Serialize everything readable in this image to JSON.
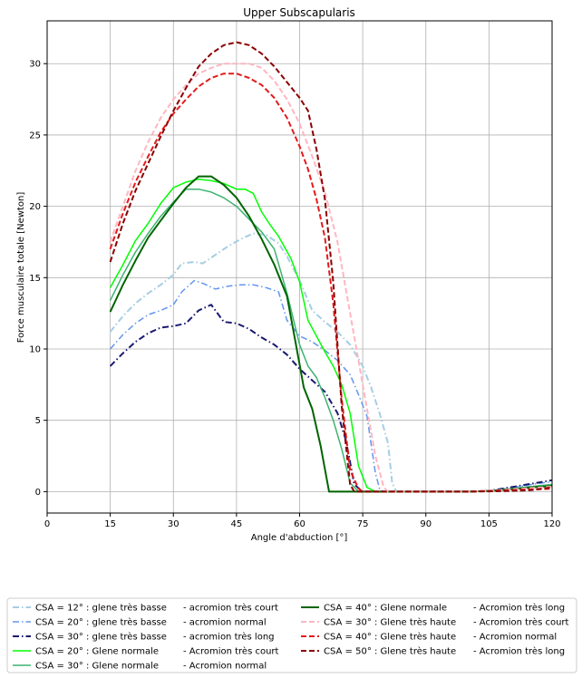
{
  "chart_data": {
    "type": "line",
    "title": "Upper Subscapularis",
    "xlabel": "Angle d'abduction [°]",
    "ylabel": "Force musculaire totale [Newton]",
    "xlim": [
      0,
      120
    ],
    "ylim": [
      -1.5,
      33
    ],
    "xticks": [
      0,
      15,
      30,
      45,
      60,
      75,
      90,
      105,
      120
    ],
    "yticks": [
      0,
      5,
      10,
      15,
      20,
      25,
      30
    ],
    "grid": true,
    "legend_position": "bottom",
    "series": [
      {
        "name": "CSA = 12° : glene très basse",
        "color": "#a6cee3",
        "dash": "dashdot",
        "width": 2,
        "x": [
          15,
          18,
          21,
          24,
          27,
          30,
          32,
          35,
          37,
          40,
          43,
          46,
          49,
          52,
          55,
          57,
          60,
          63,
          66,
          69,
          72,
          75,
          77,
          79,
          81,
          82,
          83,
          90,
          100,
          105,
          110,
          115,
          120
        ],
        "y": [
          11.2,
          12.3,
          13.2,
          13.9,
          14.5,
          15.2,
          16.0,
          16.1,
          16.0,
          16.6,
          17.2,
          17.7,
          18.1,
          18.0,
          17.4,
          16.5,
          14.8,
          12.7,
          11.9,
          11.2,
          10.3,
          8.8,
          7.3,
          5.5,
          3.4,
          0.6,
          0,
          0,
          0,
          0.05,
          0.2,
          0.35,
          0.5
        ]
      },
      {
        "name": "CSA = 20° : glene très basse",
        "color": "#6495ed",
        "dash": "dashdot",
        "width": 1.5,
        "x": [
          15,
          18,
          21,
          24,
          27,
          30,
          32,
          35,
          37,
          40,
          43,
          46,
          49,
          52,
          55,
          57,
          60,
          63,
          66,
          69,
          72,
          74,
          76,
          78,
          79,
          80,
          90,
          100,
          105,
          110,
          115,
          120
        ],
        "y": [
          10.0,
          11.0,
          11.8,
          12.4,
          12.7,
          13.1,
          14.0,
          14.8,
          14.6,
          14.2,
          14.4,
          14.5,
          14.5,
          14.3,
          14.0,
          12.0,
          10.9,
          10.5,
          9.9,
          9.2,
          8.2,
          6.8,
          5.3,
          1.3,
          0.2,
          0,
          0,
          0,
          0.05,
          0.25,
          0.5,
          0.7
        ]
      },
      {
        "name": "CSA = 30° : glene très basse",
        "color": "#191970",
        "dash": "dashdot",
        "width": 2,
        "x": [
          15,
          18,
          21,
          24,
          27,
          30,
          33,
          36,
          39,
          42,
          45,
          48,
          51,
          54,
          57,
          60,
          63,
          66,
          69,
          71,
          73,
          75,
          90,
          100,
          105,
          110,
          115,
          120
        ],
        "y": [
          8.8,
          9.7,
          10.5,
          11.1,
          11.5,
          11.6,
          11.8,
          12.7,
          13.1,
          11.9,
          11.8,
          11.4,
          10.8,
          10.3,
          9.6,
          8.6,
          7.8,
          7.0,
          5.5,
          3.6,
          0.5,
          0,
          0,
          0,
          0.05,
          0.3,
          0.55,
          0.8
        ]
      },
      {
        "name": "CSA = 20° : Glene normale",
        "color": "#00ff00",
        "dash": "solid",
        "width": 1.5,
        "x": [
          15,
          18,
          21,
          24,
          27,
          30,
          33,
          36,
          39,
          42,
          45,
          47,
          49,
          51,
          53,
          55,
          58,
          60,
          62,
          64,
          66,
          68,
          70,
          72,
          74,
          76,
          78,
          90,
          100,
          105,
          110,
          115,
          120
        ],
        "y": [
          14.3,
          15.9,
          17.6,
          18.8,
          20.2,
          21.3,
          21.7,
          21.9,
          21.8,
          21.6,
          21.2,
          21.2,
          20.9,
          19.6,
          18.7,
          17.9,
          16.3,
          14.7,
          12.0,
          10.9,
          9.8,
          8.8,
          7.5,
          5.5,
          1.8,
          0.3,
          0,
          0,
          0,
          0.05,
          0.15,
          0.3,
          0.45
        ]
      },
      {
        "name": "CSA = 30° : Glene normale",
        "color": "#3cb371",
        "dash": "solid",
        "width": 1.5,
        "x": [
          15,
          18,
          21,
          24,
          27,
          30,
          33,
          36,
          39,
          42,
          45,
          48,
          51,
          54,
          57,
          60,
          62,
          64,
          66,
          68,
          70,
          72,
          74,
          76,
          90,
          100,
          105,
          110,
          115,
          120
        ],
        "y": [
          13.4,
          15.2,
          16.8,
          18.1,
          19.3,
          20.3,
          21.2,
          21.2,
          21.0,
          20.6,
          20.0,
          19.1,
          18.2,
          17.0,
          13.9,
          10.3,
          8.8,
          8.0,
          6.6,
          5.0,
          3.0,
          0.6,
          0,
          0,
          0,
          0,
          0.05,
          0.2,
          0.35,
          0.5
        ]
      },
      {
        "name": "CSA = 40° : Glene normale",
        "color": "#006400",
        "dash": "solid",
        "width": 2,
        "x": [
          15,
          18,
          21,
          24,
          27,
          30,
          33,
          36,
          39,
          42,
          45,
          48,
          51,
          54,
          57,
          59,
          61,
          63,
          65,
          67,
          69,
          75,
          90,
          100,
          105,
          110,
          115,
          120
        ],
        "y": [
          12.6,
          14.5,
          16.2,
          17.8,
          19.0,
          20.2,
          21.3,
          22.1,
          22.1,
          21.5,
          20.6,
          19.3,
          17.7,
          15.9,
          13.7,
          10.5,
          7.3,
          5.8,
          3.2,
          0,
          0,
          0,
          0,
          0,
          0.05,
          0.15,
          0.3,
          0.4
        ]
      },
      {
        "name": "CSA = 30° : Glene très haute",
        "color": "#ffb6c1",
        "dash": "dashed",
        "width": 2,
        "x": [
          15,
          18,
          21,
          24,
          27,
          30,
          33,
          36,
          39,
          42,
          45,
          48,
          51,
          54,
          57,
          60,
          63,
          66,
          69,
          72,
          75,
          78,
          80,
          81,
          90,
          100,
          105,
          110,
          115,
          120
        ],
        "y": [
          17.5,
          20.0,
          22.5,
          24.5,
          26.2,
          27.5,
          28.5,
          29.3,
          29.7,
          30.0,
          30.0,
          30.0,
          29.7,
          28.8,
          27.5,
          25.8,
          23.5,
          21.0,
          17.5,
          12.5,
          7.5,
          2.5,
          0.3,
          0,
          0,
          0,
          0.05,
          0.15,
          0.25,
          0.35
        ]
      },
      {
        "name": "CSA = 40° : Glene très haute",
        "color": "#e31a1c",
        "dash": "dashed",
        "width": 2,
        "x": [
          15,
          18,
          21,
          24,
          27,
          30,
          33,
          36,
          39,
          42,
          45,
          48,
          51,
          54,
          57,
          60,
          62,
          64,
          66,
          68,
          70,
          72,
          74,
          75,
          90,
          100,
          105,
          110,
          115,
          120
        ],
        "y": [
          17.0,
          19.5,
          21.7,
          23.5,
          25.2,
          26.5,
          27.5,
          28.4,
          29.0,
          29.3,
          29.3,
          29.0,
          28.5,
          27.6,
          26.2,
          24.2,
          22.6,
          20.5,
          17.8,
          13.2,
          6.5,
          1.5,
          0.2,
          0,
          0,
          0,
          0.05,
          0.1,
          0.15,
          0.2
        ]
      },
      {
        "name": "CSA = 50° : Glene très haute",
        "color": "#8b0000",
        "dash": "dashed",
        "width": 2,
        "x": [
          15,
          18,
          21,
          24,
          27,
          30,
          33,
          36,
          39,
          42,
          45,
          48,
          51,
          54,
          57,
          60,
          62,
          64,
          66,
          68,
          70,
          72,
          73,
          90,
          100,
          105,
          110,
          115,
          120
        ],
        "y": [
          16.1,
          18.8,
          21.1,
          23.0,
          24.9,
          26.7,
          28.3,
          29.8,
          30.7,
          31.3,
          31.5,
          31.3,
          30.7,
          29.8,
          28.7,
          27.6,
          26.7,
          24.0,
          20.5,
          14.7,
          6.0,
          0.5,
          0,
          0,
          0,
          0.02,
          0.05,
          0.1,
          0.3
        ]
      }
    ],
    "legend_suffixes": [
      "-  acromion très court",
      "-  acromion normal",
      "-  acromion très long",
      "-  Acromion très court",
      "-  Acromion normal",
      "-  Acromion très long",
      "-  Acromion très court",
      "-  Acromion normal",
      "-  Acromion très long"
    ]
  }
}
